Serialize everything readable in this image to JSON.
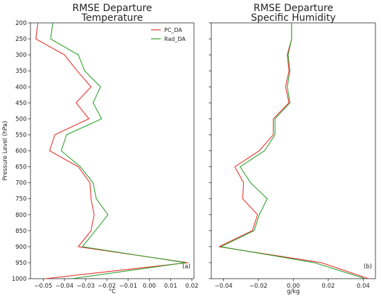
{
  "chart_data": [
    {
      "type": "line",
      "title": "RMSE Departure\nTemperature",
      "xlabel": "°C",
      "ylabel": "Pressure Level (hPa)",
      "panel_label": "(a)",
      "xlim": [
        -0.056,
        0.021
      ],
      "ylim": [
        1000,
        200
      ],
      "y_inverted": true,
      "xticks": [
        -0.05,
        -0.04,
        -0.03,
        -0.02,
        -0.01,
        0.0,
        0.01,
        0.02
      ],
      "xtick_labels": [
        "−0.05",
        "−0.04",
        "−0.03",
        "−0.02",
        "−0.01",
        "0.00",
        "0.01",
        "0.02"
      ],
      "yticks": [
        200,
        250,
        300,
        350,
        400,
        450,
        500,
        550,
        600,
        650,
        700,
        750,
        800,
        850,
        900,
        950,
        1000
      ],
      "legend": {
        "placement": "top-right",
        "entries": [
          "PC_DA",
          "Rad_DA"
        ]
      },
      "y": [
        200,
        250,
        300,
        350,
        400,
        450,
        500,
        550,
        600,
        650,
        700,
        750,
        800,
        850,
        900,
        950,
        1000
      ],
      "series": [
        {
          "name": "PC_DA",
          "color": "#e8302a",
          "x": [
            -0.0525,
            -0.0535,
            -0.04,
            -0.034,
            -0.0275,
            -0.0345,
            -0.0285,
            -0.0445,
            -0.047,
            -0.0335,
            -0.028,
            -0.0275,
            -0.026,
            -0.0275,
            -0.0335,
            0.018,
            -0.049
          ]
        },
        {
          "name": "Rad_DA",
          "color": "#2ca02c",
          "x": [
            -0.0455,
            -0.0465,
            -0.0335,
            -0.0305,
            -0.023,
            -0.0265,
            -0.0225,
            -0.039,
            -0.0415,
            -0.0325,
            -0.0265,
            -0.025,
            -0.0195,
            -0.0255,
            -0.0315,
            0.017,
            -0.0365
          ]
        }
      ]
    },
    {
      "type": "line",
      "title": "RMSE Departure\nSpecific Humidity",
      "xlabel": "g/kg",
      "ylabel": "",
      "panel_label": "(b)",
      "xlim": [
        -0.047,
        0.047
      ],
      "ylim": [
        1000,
        200
      ],
      "y_inverted": true,
      "xticks": [
        -0.04,
        -0.02,
        0.0,
        0.02,
        0.04
      ],
      "xtick_labels": [
        "−0.04",
        "−0.02",
        "0.00",
        "0.02",
        "0.04"
      ],
      "y": [
        200,
        250,
        300,
        350,
        400,
        450,
        500,
        550,
        600,
        650,
        700,
        750,
        800,
        850,
        900,
        950,
        1000
      ],
      "series": [
        {
          "name": "PC_DA",
          "color": "#e8302a",
          "x": [
            -0.001,
            -0.001,
            -0.0035,
            -0.0025,
            -0.0045,
            -0.0025,
            -0.0115,
            -0.0115,
            -0.0195,
            -0.0335,
            -0.0285,
            -0.029,
            -0.0205,
            -0.0235,
            -0.0425,
            0.016,
            0.043
          ]
        },
        {
          "name": "Rad_DA",
          "color": "#2ca02c",
          "x": [
            -0.001,
            -0.001,
            -0.003,
            -0.002,
            -0.0035,
            -0.002,
            -0.0105,
            -0.0105,
            -0.0165,
            -0.0305,
            -0.0245,
            -0.015,
            -0.0195,
            -0.0225,
            -0.0415,
            0.012,
            0.041
          ]
        }
      ]
    }
  ]
}
